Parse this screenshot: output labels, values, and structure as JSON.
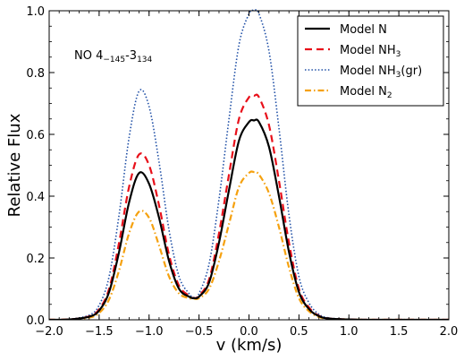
{
  "chart_data": {
    "type": "line",
    "xlabel": "v (km/s)",
    "ylabel": "Relative Flux",
    "xlim": [
      -2.0,
      2.0
    ],
    "ylim": [
      0.0,
      1.0
    ],
    "xticks": [
      "−2.0",
      "−1.5",
      "−1.0",
      "−0.5",
      "0.0",
      "0.5",
      "1.0",
      "1.5",
      "2.0"
    ],
    "yticks": [
      "0.0",
      "0.2",
      "0.4",
      "0.6",
      "0.8",
      "1.0"
    ],
    "grid": false,
    "legend_position": "top-right",
    "annotation": {
      "main": "NO 4",
      "sub1": "−145",
      "mid": "-3",
      "sub2": "134"
    },
    "series": [
      {
        "name": "Model N",
        "name_base": "Model N",
        "name_sub": "",
        "name_suffix": "",
        "color": "#000000",
        "style": "solid",
        "x": [
          -2.0,
          -1.8,
          -1.6,
          -1.5,
          -1.4,
          -1.3,
          -1.2,
          -1.1,
          -1.0,
          -0.9,
          -0.8,
          -0.7,
          -0.6,
          -0.55,
          -0.5,
          -0.4,
          -0.3,
          -0.2,
          -0.1,
          0.0,
          0.05,
          0.1,
          0.2,
          0.3,
          0.4,
          0.5,
          0.6,
          0.7,
          0.8,
          1.0,
          1.2,
          1.5,
          2.0
        ],
        "y": [
          0.0,
          0.001,
          0.01,
          0.03,
          0.09,
          0.22,
          0.38,
          0.475,
          0.44,
          0.33,
          0.19,
          0.1,
          0.075,
          0.07,
          0.075,
          0.12,
          0.25,
          0.42,
          0.58,
          0.64,
          0.645,
          0.64,
          0.56,
          0.4,
          0.22,
          0.09,
          0.035,
          0.012,
          0.004,
          0.001,
          0.0,
          0.0,
          0.0
        ]
      },
      {
        "name": "Model NH3",
        "name_base": "Model NH",
        "name_sub": "3",
        "name_suffix": "",
        "color": "#e8101a",
        "style": "dashed",
        "x": [
          -2.0,
          -1.8,
          -1.6,
          -1.5,
          -1.4,
          -1.3,
          -1.2,
          -1.1,
          -1.0,
          -0.9,
          -0.8,
          -0.7,
          -0.6,
          -0.55,
          -0.5,
          -0.4,
          -0.3,
          -0.2,
          -0.1,
          0.0,
          0.05,
          0.1,
          0.2,
          0.3,
          0.4,
          0.5,
          0.6,
          0.7,
          0.8,
          1.0,
          1.2,
          1.5,
          2.0
        ],
        "y": [
          0.0,
          0.001,
          0.011,
          0.034,
          0.1,
          0.25,
          0.43,
          0.535,
          0.5,
          0.37,
          0.21,
          0.11,
          0.078,
          0.07,
          0.078,
          0.13,
          0.28,
          0.47,
          0.65,
          0.72,
          0.725,
          0.72,
          0.63,
          0.45,
          0.25,
          0.1,
          0.04,
          0.013,
          0.004,
          0.001,
          0.0,
          0.0,
          0.0
        ]
      },
      {
        "name": "Model NH3(gr)",
        "name_base": "Model NH",
        "name_sub": "3",
        "name_suffix": "(gr)",
        "color": "#1f4fa6",
        "style": "dotted",
        "x": [
          -2.0,
          -1.8,
          -1.6,
          -1.5,
          -1.4,
          -1.3,
          -1.2,
          -1.1,
          -1.0,
          -0.9,
          -0.8,
          -0.7,
          -0.6,
          -0.55,
          -0.5,
          -0.4,
          -0.3,
          -0.2,
          -0.1,
          0.0,
          0.05,
          0.1,
          0.2,
          0.3,
          0.4,
          0.5,
          0.6,
          0.7,
          0.8,
          1.0,
          1.2,
          1.5,
          2.0
        ],
        "y": [
          0.0,
          0.002,
          0.015,
          0.047,
          0.14,
          0.34,
          0.59,
          0.74,
          0.69,
          0.51,
          0.29,
          0.14,
          0.085,
          0.072,
          0.085,
          0.18,
          0.39,
          0.65,
          0.89,
          0.99,
          1.0,
          0.99,
          0.87,
          0.62,
          0.34,
          0.14,
          0.055,
          0.018,
          0.006,
          0.001,
          0.0,
          0.0,
          0.0
        ]
      },
      {
        "name": "Model N2",
        "name_base": "Model N",
        "name_sub": "2",
        "name_suffix": "",
        "color": "#f5a10f",
        "style": "dashdot",
        "x": [
          -2.0,
          -1.8,
          -1.6,
          -1.5,
          -1.4,
          -1.3,
          -1.2,
          -1.1,
          -1.0,
          -0.9,
          -0.8,
          -0.7,
          -0.6,
          -0.55,
          -0.5,
          -0.4,
          -0.3,
          -0.2,
          -0.1,
          0.0,
          0.05,
          0.1,
          0.2,
          0.3,
          0.4,
          0.5,
          0.6,
          0.7,
          0.8,
          1.0,
          1.2,
          1.5,
          2.0
        ],
        "y": [
          0.0,
          0.001,
          0.007,
          0.022,
          0.066,
          0.16,
          0.28,
          0.35,
          0.33,
          0.24,
          0.14,
          0.085,
          0.07,
          0.068,
          0.07,
          0.1,
          0.19,
          0.31,
          0.43,
          0.475,
          0.478,
          0.47,
          0.41,
          0.3,
          0.17,
          0.07,
          0.028,
          0.009,
          0.003,
          0.001,
          0.0,
          0.0,
          0.0
        ]
      }
    ]
  }
}
